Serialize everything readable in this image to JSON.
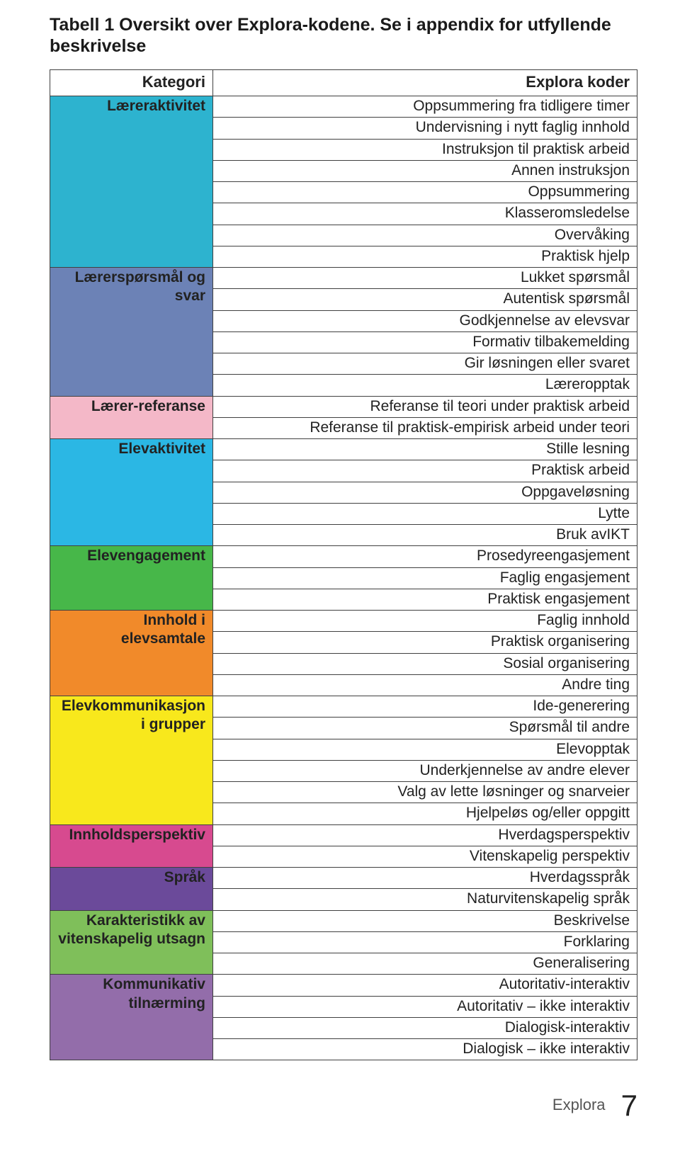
{
  "title": "Tabell 1 Oversikt over Explora-kodene. Se i appendix for utfyllende beskrivelse",
  "header": {
    "category": "Kategori",
    "codes": "Explora koder"
  },
  "colors": {
    "laereraktivitet": "#2db3cf",
    "laererspm": "#6c82b6",
    "laererref": "#f4b8c8",
    "elevaktivitet": "#2bb7e4",
    "elevengagement": "#47b749",
    "innhold_samtale": "#f18a2a",
    "elevkomm": "#f8e81c",
    "innholdsperspektiv": "#d74a8f",
    "sprak": "#6b4a9a",
    "karakteristikk": "#7fbf5a",
    "kommunikativ": "#936daa"
  },
  "groups": [
    {
      "key": "laereraktivitet",
      "label": "Læreraktivitet",
      "codes": [
        "Oppsummering fra tidligere timer",
        "Undervisning i nytt faglig innhold",
        "Instruksjon til praktisk arbeid",
        "Annen instruksjon",
        "Oppsummering",
        "Klasseromsledelse",
        "Overvåking",
        "Praktisk hjelp"
      ]
    },
    {
      "key": "laererspm",
      "label": "Lærerspørsmål og svar",
      "codes": [
        "Lukket spørsmål",
        "Autentisk spørsmål",
        "Godkjennelse av elevsvar",
        "Formativ tilbakemelding",
        "Gir løsningen eller svaret",
        "Læreropptak"
      ]
    },
    {
      "key": "laererref",
      "label": "Lærer-referanse",
      "codes": [
        "Referanse til teori under praktisk arbeid",
        "Referanse til praktisk-empirisk arbeid under teori"
      ]
    },
    {
      "key": "elevaktivitet",
      "label": "Elevaktivitet",
      "codes": [
        "Stille lesning",
        "Praktisk arbeid",
        "Oppgaveløsning",
        "Lytte",
        "Bruk avIKT"
      ]
    },
    {
      "key": "elevengagement",
      "label": "Elevengagement",
      "codes": [
        "Prosedyreengasjement",
        "Faglig engasjement",
        "Praktisk engasjement"
      ]
    },
    {
      "key": "innhold_samtale",
      "label": "Innhold i elevsamtale",
      "codes": [
        "Faglig innhold",
        "Praktisk organisering",
        "Sosial organisering",
        "Andre ting"
      ]
    },
    {
      "key": "elevkomm",
      "label": "Elevkommunikasjon i grupper",
      "codes": [
        "Ide-generering",
        "Spørsmål til andre",
        "Elevopptak",
        "Underkjennelse av andre elever",
        "Valg av lette løsninger og snarveier",
        "Hjelpeløs og/eller oppgitt"
      ]
    },
    {
      "key": "innholdsperspektiv",
      "label": "Innholdsperspektiv",
      "codes": [
        "Hverdagsperspektiv",
        "Vitenskapelig perspektiv"
      ]
    },
    {
      "key": "sprak",
      "label": "Språk",
      "codes": [
        "Hverdagsspråk",
        "Naturvitenskapelig språk"
      ]
    },
    {
      "key": "karakteristikk",
      "label": "Karakteristikk av  vitenskapelig utsagn",
      "codes": [
        "Beskrivelse",
        "Forklaring",
        "Generalisering"
      ]
    },
    {
      "key": "kommunikativ",
      "label": "Kommunikativ tilnærming",
      "codes": [
        "Autoritativ-interaktiv",
        "Autoritativ – ikke interaktiv",
        "Dialogisk-interaktiv",
        "Dialogisk – ikke interaktiv"
      ]
    }
  ],
  "footer": {
    "label": "Explora",
    "page": "7"
  }
}
